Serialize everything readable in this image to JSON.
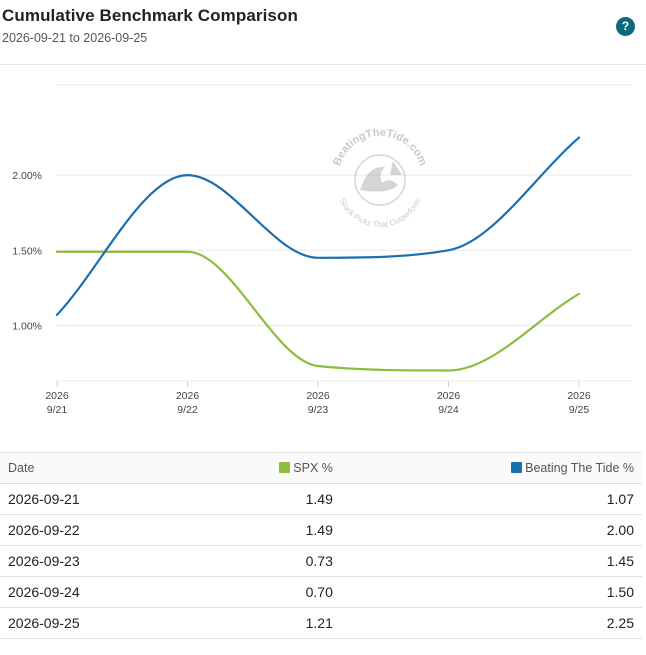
{
  "header": {
    "title": "Cumulative Benchmark Comparison",
    "subtitle": "2026-09-21 to 2026-09-25",
    "help_label": "?"
  },
  "watermark": {
    "top_text": "BeatingTheTide.com",
    "bottom_text": "Stock Picks That Outperform"
  },
  "chart_data": {
    "type": "line",
    "title": "",
    "xlabel": "",
    "ylabel": "",
    "categories": [
      "9/21",
      "9/22",
      "9/23",
      "9/24",
      "9/25"
    ],
    "tick_year": "2026",
    "y_ticks": [
      "1.00%",
      "1.50%",
      "2.00%"
    ],
    "y_tick_values": [
      1.0,
      1.5,
      2.0
    ],
    "ylim": [
      0.63,
      2.6
    ],
    "grid": true,
    "series": [
      {
        "name": "SPX %",
        "color": "#8cbd3f",
        "values": [
          1.49,
          1.49,
          0.73,
          0.7,
          1.21
        ]
      },
      {
        "name": "Beating The Tide %",
        "color": "#1a6fb0",
        "values": [
          1.07,
          2.0,
          1.45,
          1.5,
          2.25
        ]
      }
    ]
  },
  "table": {
    "col_date": "Date",
    "col_spx": "SPX %",
    "col_btt": "Beating The Tide %",
    "rows": [
      {
        "date": "2026-09-21",
        "spx": "1.49",
        "btt": "1.07"
      },
      {
        "date": "2026-09-22",
        "spx": "1.49",
        "btt": "2.00"
      },
      {
        "date": "2026-09-23",
        "spx": "0.73",
        "btt": "1.45"
      },
      {
        "date": "2026-09-24",
        "spx": "0.70",
        "btt": "1.50"
      },
      {
        "date": "2026-09-25",
        "spx": "1.21",
        "btt": "2.25"
      }
    ]
  },
  "colors": {
    "spx": "#8cbd3f",
    "btt": "#1a6fb0",
    "help": "#0b6b7c"
  }
}
